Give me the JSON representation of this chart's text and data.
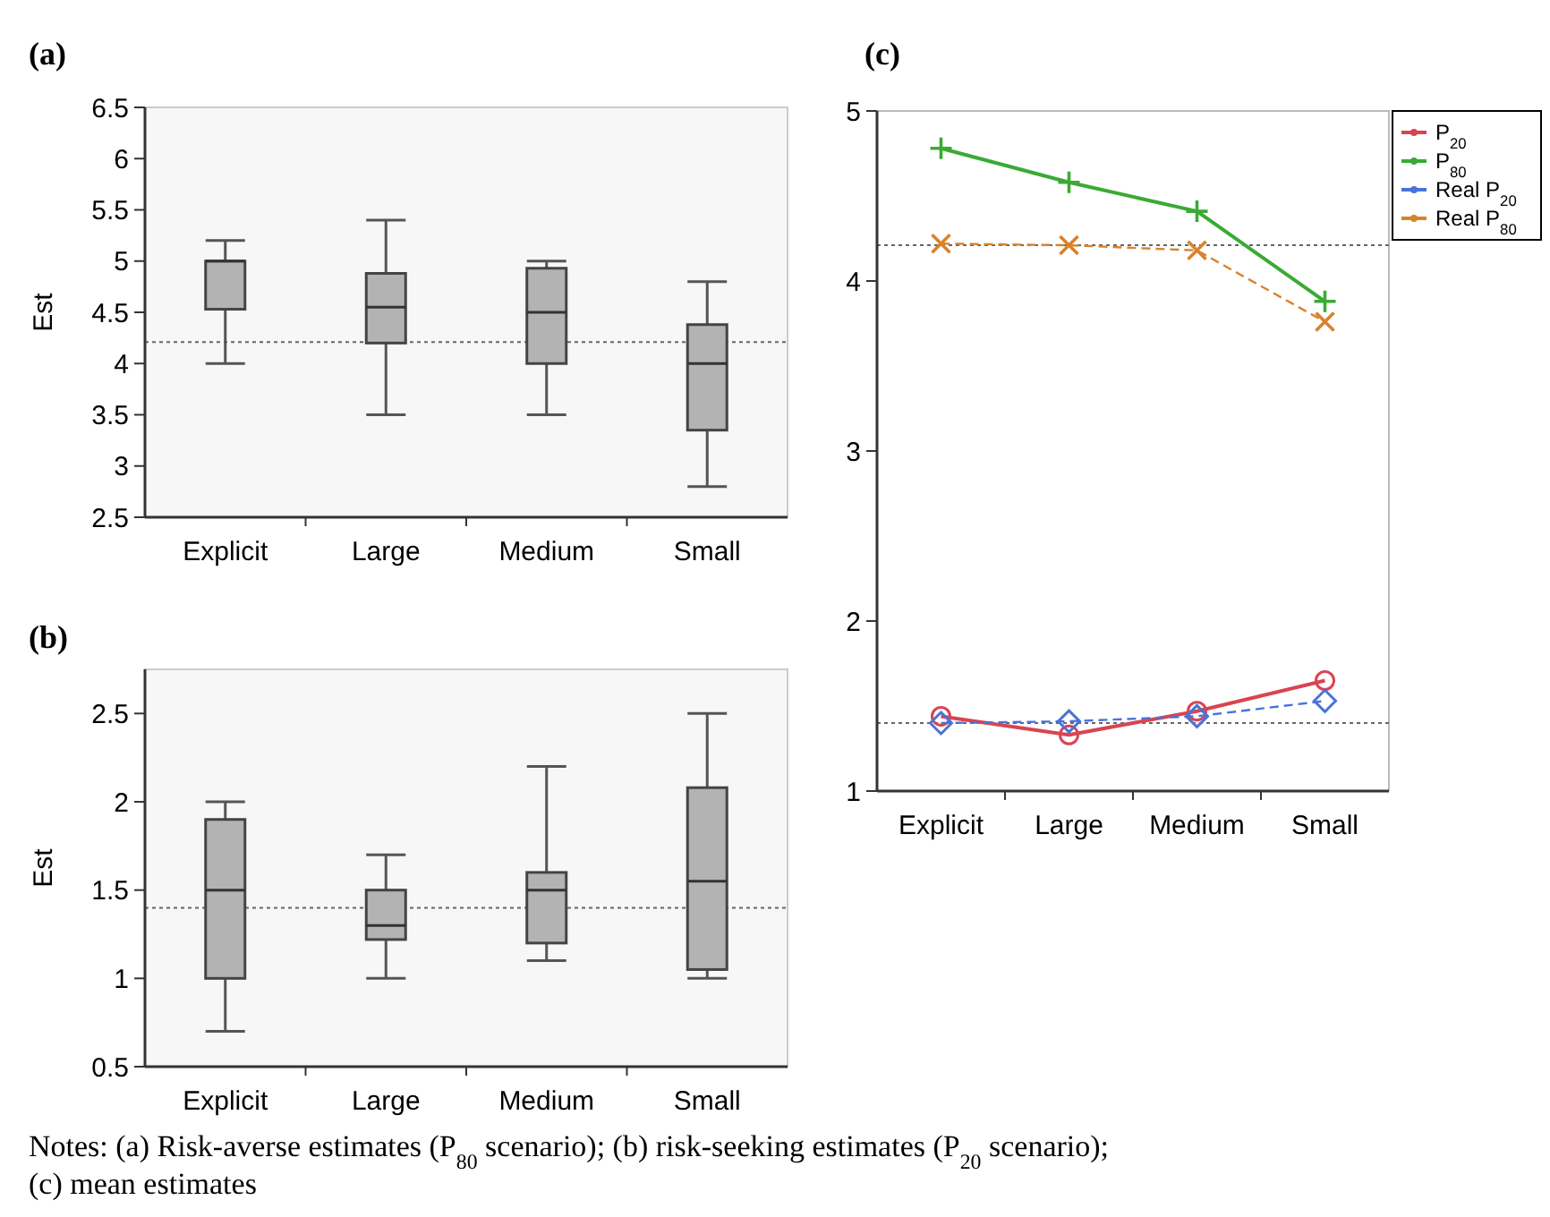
{
  "chart_data": [
    {
      "type": "box",
      "title": "(a)",
      "ylabel": "Est",
      "categories": [
        "Explicit",
        "Large",
        "Medium",
        "Small"
      ],
      "ylim": [
        2.5,
        6.5
      ],
      "yticks": [
        2.5,
        3,
        3.5,
        4,
        4.5,
        5,
        5.5,
        6,
        6.5
      ],
      "boxes": [
        {
          "low": 4.0,
          "q1": 4.53,
          "median": 5.0,
          "q3": 5.0,
          "high": 5.2
        },
        {
          "low": 3.5,
          "q1": 4.2,
          "median": 4.55,
          "q3": 4.88,
          "high": 5.4
        },
        {
          "low": 3.5,
          "q1": 4.0,
          "median": 4.5,
          "q3": 4.93,
          "high": 5.0
        },
        {
          "low": 2.8,
          "q1": 3.35,
          "median": 4.0,
          "q3": 4.38,
          "high": 4.8
        }
      ],
      "color": "#b3b3b3",
      "ref_lines": [
        {
          "axis": "y",
          "value": 4.21,
          "line_style": "dotted"
        }
      ]
    },
    {
      "type": "box",
      "title": "(b)",
      "ylabel": "Est",
      "categories": [
        "Explicit",
        "Large",
        "Medium",
        "Small"
      ],
      "ylim": [
        0.5,
        2.75
      ],
      "yticks": [
        0.5,
        1,
        1.5,
        2,
        2.5
      ],
      "boxes": [
        {
          "low": 0.7,
          "q1": 1.0,
          "median": 1.5,
          "q3": 1.9,
          "high": 2.0
        },
        {
          "low": 1.0,
          "q1": 1.22,
          "median": 1.3,
          "q3": 1.5,
          "high": 1.7
        },
        {
          "low": 1.1,
          "q1": 1.2,
          "median": 1.5,
          "q3": 1.6,
          "high": 2.2
        },
        {
          "low": 1.0,
          "q1": 1.05,
          "median": 1.55,
          "q3": 2.08,
          "high": 2.5
        }
      ],
      "color": "#b3b3b3",
      "ref_lines": [
        {
          "axis": "y",
          "value": 1.4,
          "line_style": "dotted"
        }
      ],
      "annotations": [
        "Notes: (a) Risk-averse estimates (P$_{80}$ scenario); (b) risk-seeking estimates (P$_{20}$ scenario);",
        "(c) mean estimates"
      ]
    },
    {
      "type": "line",
      "title": "(c)",
      "categories": [
        "Explicit",
        "Large",
        "Medium",
        "Small"
      ],
      "ylim": [
        1,
        5
      ],
      "yticks": [
        1,
        2,
        3,
        4,
        5
      ],
      "legend": "top right",
      "series": [
        {
          "name": "P$_{20}$",
          "color": "#d94452",
          "values": [
            1.44,
            1.33,
            1.47,
            1.65
          ],
          "marker": "circle",
          "line_style": "solid"
        },
        {
          "name": "P$_{80}$",
          "color": "#3aaa35",
          "values": [
            4.78,
            4.58,
            4.41,
            3.88
          ],
          "marker": "cross",
          "line_style": "solid"
        },
        {
          "name": "Real P$_{20}$",
          "color": "#4a72d9",
          "values": [
            1.4,
            1.41,
            1.44,
            1.53
          ],
          "marker": "diamond",
          "line_style": "dashed"
        },
        {
          "name": "Real P$_{80}$",
          "color": "#d9822b",
          "values": [
            4.22,
            4.21,
            4.18,
            3.76
          ],
          "marker": "x",
          "line_style": "dashed"
        }
      ],
      "ref_lines": [
        {
          "axis": "y",
          "value": 4.21,
          "line_style": "dotted"
        },
        {
          "axis": "y",
          "value": 1.4,
          "line_style": "dotted"
        }
      ]
    }
  ]
}
